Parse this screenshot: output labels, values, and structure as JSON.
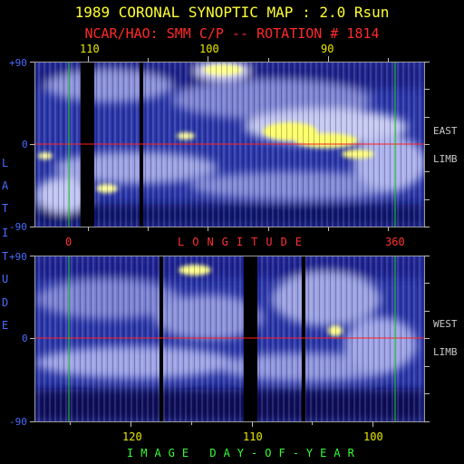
{
  "title": "1989 CORONAL SYNOPTIC MAP : 2.0 Rsun",
  "subtitle": "NCAR/HAO: SMM C/P -- ROTATION # 1814",
  "top_axis_ticks": [
    "110",
    "100",
    "90"
  ],
  "latitude_ticks": {
    "top": "+90",
    "mid": "0",
    "bottom": "-90"
  },
  "longitude_ticks": {
    "start": "0",
    "end": "360"
  },
  "longitude_label": "LONGITUDE",
  "latitude_label_letters": [
    "L",
    "A",
    "T",
    "I",
    "T",
    "U",
    "D",
    "E"
  ],
  "east_limb": {
    "line1": "EAST",
    "line2": "LIMB"
  },
  "west_limb": {
    "line1": "WEST",
    "line2": "LIMB"
  },
  "bottom_axis_ticks": [
    "120",
    "110",
    "100"
  ],
  "bottom_axis_label": "IMAGE DAY-OF-YEAR",
  "colors": {
    "title": "#ffff33",
    "subtitle": "#ff2a2a",
    "equator": "#ff2020",
    "meridian": "#22dd22",
    "map_low": "#141878",
    "map_high": "#ffff55"
  }
}
